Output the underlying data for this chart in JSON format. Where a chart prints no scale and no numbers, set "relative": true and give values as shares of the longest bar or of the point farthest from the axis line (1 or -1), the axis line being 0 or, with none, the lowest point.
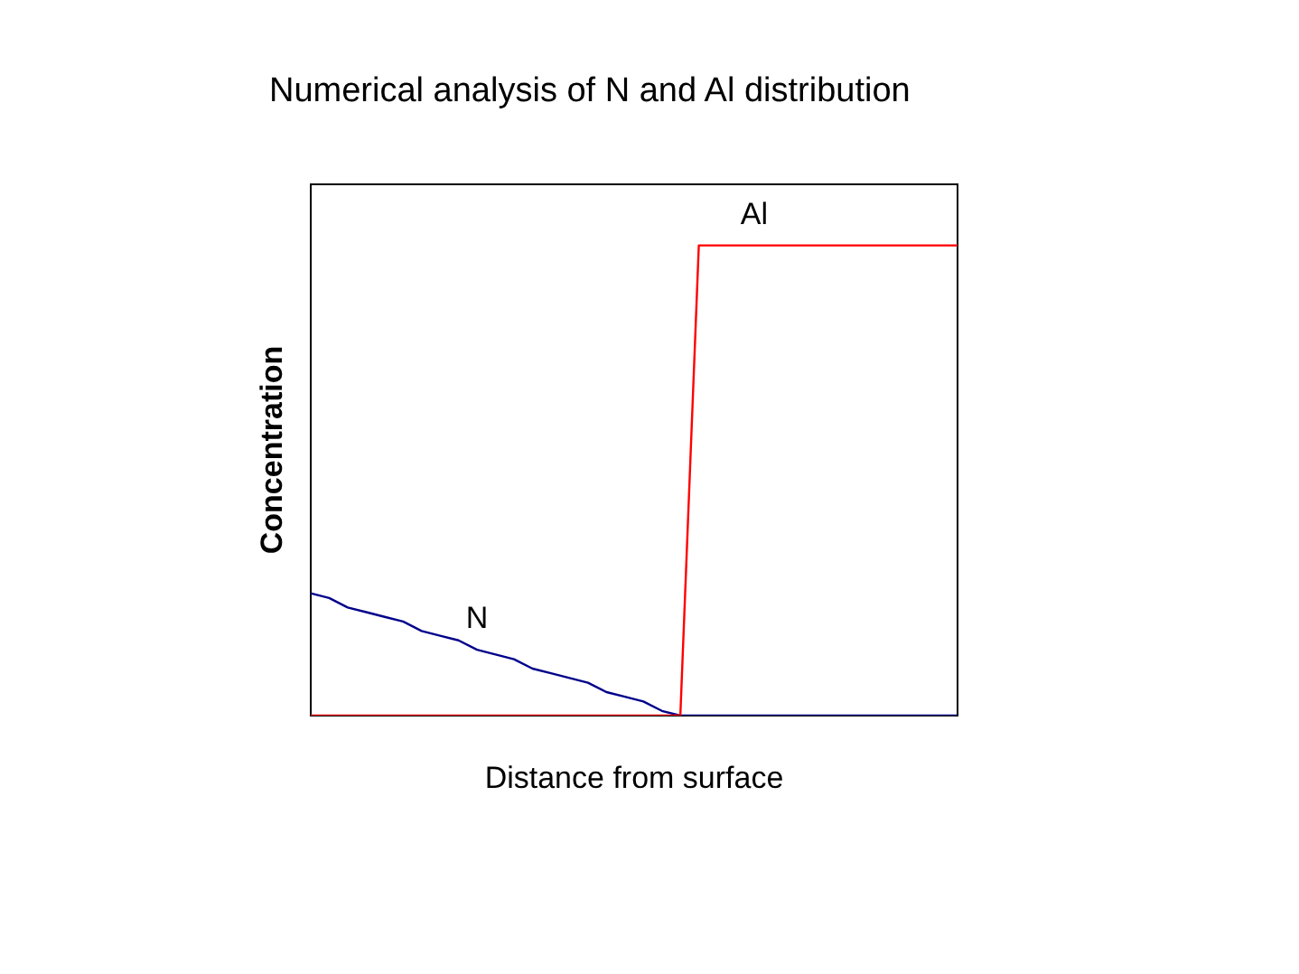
{
  "chart_data": {
    "type": "line",
    "title": "Numerical analysis of N and Al distribution",
    "xlabel": "Distance from surface",
    "ylabel": "Concentration",
    "relative": true,
    "legend": false,
    "marker": "none",
    "line_style": "solid",
    "categories": [
      null,
      null,
      null,
      null,
      null,
      null,
      null,
      null,
      null,
      null,
      null,
      null,
      null,
      null,
      null,
      null,
      null,
      null,
      null,
      null,
      null,
      null,
      null,
      null,
      null,
      null,
      null,
      null,
      null,
      null,
      null,
      null,
      null,
      null,
      null,
      null
    ],
    "series": [
      {
        "name": "N",
        "color": "#00008b",
        "values": [
          0.26,
          0.25,
          0.23,
          0.22,
          0.21,
          0.2,
          0.18,
          0.17,
          0.16,
          0.14,
          0.13,
          0.12,
          0.1,
          0.09,
          0.08,
          0.07,
          0.05,
          0.04,
          0.03,
          0.01,
          0,
          0,
          0,
          0,
          0,
          0,
          0,
          0,
          0,
          0,
          0,
          0,
          0,
          0,
          0,
          0
        ]
      },
      {
        "name": "Al",
        "color": "#ff0000",
        "values": [
          0,
          0,
          0,
          0,
          0,
          0,
          0,
          0,
          0,
          0,
          0,
          0,
          0,
          0,
          0,
          0,
          0,
          0,
          0,
          0,
          0,
          1,
          1,
          1,
          1,
          1,
          1,
          1,
          1,
          1,
          1,
          1,
          1,
          1,
          1,
          1
        ]
      }
    ]
  }
}
